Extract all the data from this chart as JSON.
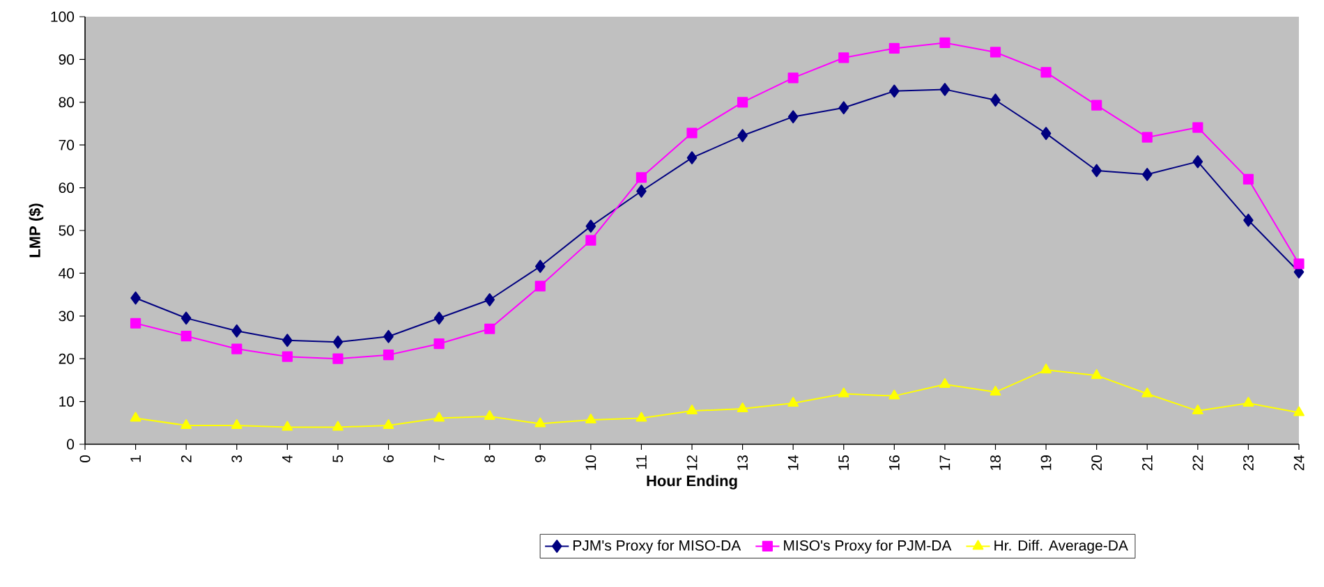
{
  "chart_data": {
    "type": "line",
    "xlabel": "Hour Ending",
    "ylabel": "LMP ($)",
    "x": [
      1,
      2,
      3,
      4,
      5,
      6,
      7,
      8,
      9,
      10,
      11,
      12,
      13,
      14,
      15,
      16,
      17,
      18,
      19,
      20,
      21,
      22,
      23,
      24
    ],
    "series": [
      {
        "name": "PJM's Proxy for MISO-DA",
        "color": "#000080",
        "marker": "diamond",
        "values": [
          34.2,
          29.5,
          26.5,
          24.3,
          23.9,
          25.2,
          29.5,
          33.8,
          41.6,
          51,
          59.2,
          67,
          72.2,
          76.6,
          78.7,
          82.6,
          83,
          80.5,
          72.7,
          64,
          63.1,
          66.1,
          52.4,
          40.3
        ]
      },
      {
        "name": "MISO's Proxy for PJM-DA",
        "color": "#ff00ff",
        "marker": "square",
        "values": [
          28.3,
          25.3,
          22.3,
          20.5,
          20,
          20.9,
          23.5,
          27,
          37,
          47.7,
          62.4,
          72.8,
          80,
          85.7,
          90.4,
          92.6,
          93.9,
          91.7,
          87,
          79.3,
          71.8,
          74.1,
          62,
          42.2
        ]
      },
      {
        "name": "Hr. Diff. Average-DA",
        "color": "#ffff00",
        "marker": "triangle",
        "values": [
          6.1,
          4.4,
          4.4,
          4,
          4,
          4.4,
          6.1,
          6.5,
          4.8,
          5.7,
          6.1,
          7.8,
          8.3,
          9.6,
          11.8,
          11.3,
          14,
          12.2,
          17.4,
          16.1,
          11.8,
          7.8,
          9.6,
          7.4
        ]
      }
    ],
    "xlim": [
      0,
      24
    ],
    "xticks": [
      0,
      1,
      2,
      3,
      4,
      5,
      6,
      7,
      8,
      9,
      10,
      11,
      12,
      13,
      14,
      15,
      16,
      17,
      18,
      19,
      20,
      21,
      22,
      23,
      24
    ],
    "ylim": [
      0,
      100
    ],
    "yticks": [
      0,
      10,
      20,
      30,
      40,
      50,
      60,
      70,
      80,
      90,
      100
    ],
    "legend": "bottom",
    "line_style": "solid"
  }
}
